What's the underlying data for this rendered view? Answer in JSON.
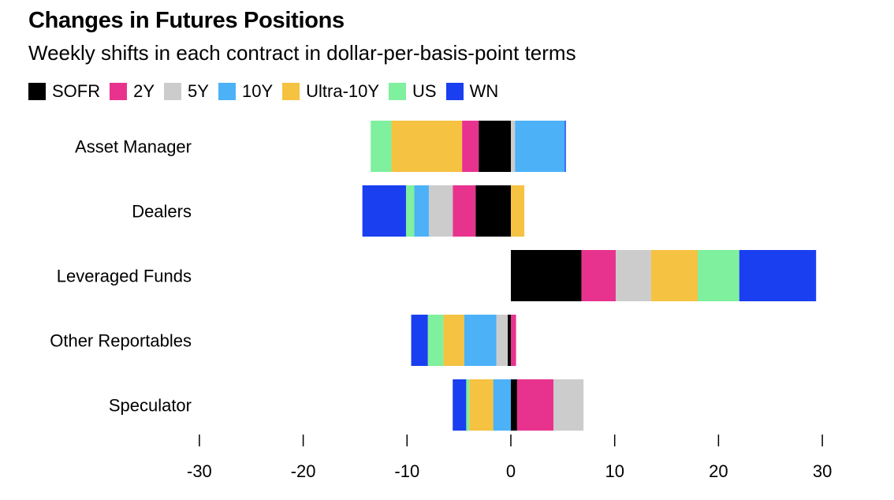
{
  "chart_data": {
    "type": "bar",
    "orientation": "horizontal",
    "stacked": true,
    "title": "Changes in Futures Positions",
    "subtitle": "Weekly shifts in each contract in dollar-per-basis-point terms",
    "categories": [
      "Asset Manager",
      "Dealers",
      "Leveraged Funds",
      "Other Reportables",
      "Speculator"
    ],
    "series": [
      {
        "name": "SOFR",
        "color": "#000000",
        "values": [
          -3.1,
          -3.4,
          6.8,
          -0.3,
          0.6
        ]
      },
      {
        "name": "2Y",
        "color": "#e8338e",
        "values": [
          -1.6,
          -2.2,
          3.3,
          0.5,
          3.5
        ]
      },
      {
        "name": "5Y",
        "color": "#cccccc",
        "values": [
          0.4,
          -2.3,
          3.4,
          -1.1,
          2.9
        ]
      },
      {
        "name": "10Y",
        "color": "#4cb1f7",
        "values": [
          4.8,
          -1.4,
          0.0,
          -3.1,
          -1.7
        ]
      },
      {
        "name": "Ultra-10Y",
        "color": "#f5c242",
        "values": [
          -6.8,
          1.3,
          4.5,
          -2.0,
          -2.3
        ]
      },
      {
        "name": "US",
        "color": "#7ff09d",
        "values": [
          -2.0,
          -0.8,
          4.0,
          -1.5,
          -0.3
        ]
      },
      {
        "name": "WN",
        "color": "#1a3ff0",
        "values": [
          0.1,
          -4.2,
          7.4,
          -1.6,
          -1.3
        ]
      }
    ],
    "x_ticks": [
      -30,
      -20,
      -10,
      0,
      10,
      20,
      30
    ],
    "xlim": [
      -30,
      30
    ],
    "grid": false,
    "legend_position": "top-left"
  }
}
